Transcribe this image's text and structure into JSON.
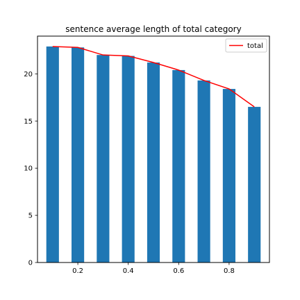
{
  "chart_data": {
    "type": "bar",
    "title": "sentence average length of total category",
    "xlabel": "",
    "ylabel": "",
    "x": [
      0.1,
      0.2,
      0.3,
      0.4,
      0.5,
      0.6,
      0.7,
      0.8,
      0.9
    ],
    "bar_width": 0.05,
    "series": [
      {
        "name": "",
        "type": "bar",
        "values": [
          22.9,
          22.8,
          22.0,
          21.9,
          21.2,
          20.4,
          19.3,
          18.4,
          16.5
        ],
        "color": "#1f77b4"
      },
      {
        "name": "total",
        "type": "line",
        "values": [
          22.9,
          22.8,
          22.0,
          21.9,
          21.2,
          20.4,
          19.3,
          18.4,
          16.5
        ],
        "color": "#ff0000"
      }
    ],
    "xlim": [
      0.04,
      0.96
    ],
    "ylim": [
      0,
      24
    ],
    "xticks": [
      "0.2",
      "0.4",
      "0.6",
      "0.8"
    ],
    "yticks": [
      "0",
      "5",
      "10",
      "15",
      "20"
    ],
    "grid": false,
    "legend": "top-right"
  }
}
